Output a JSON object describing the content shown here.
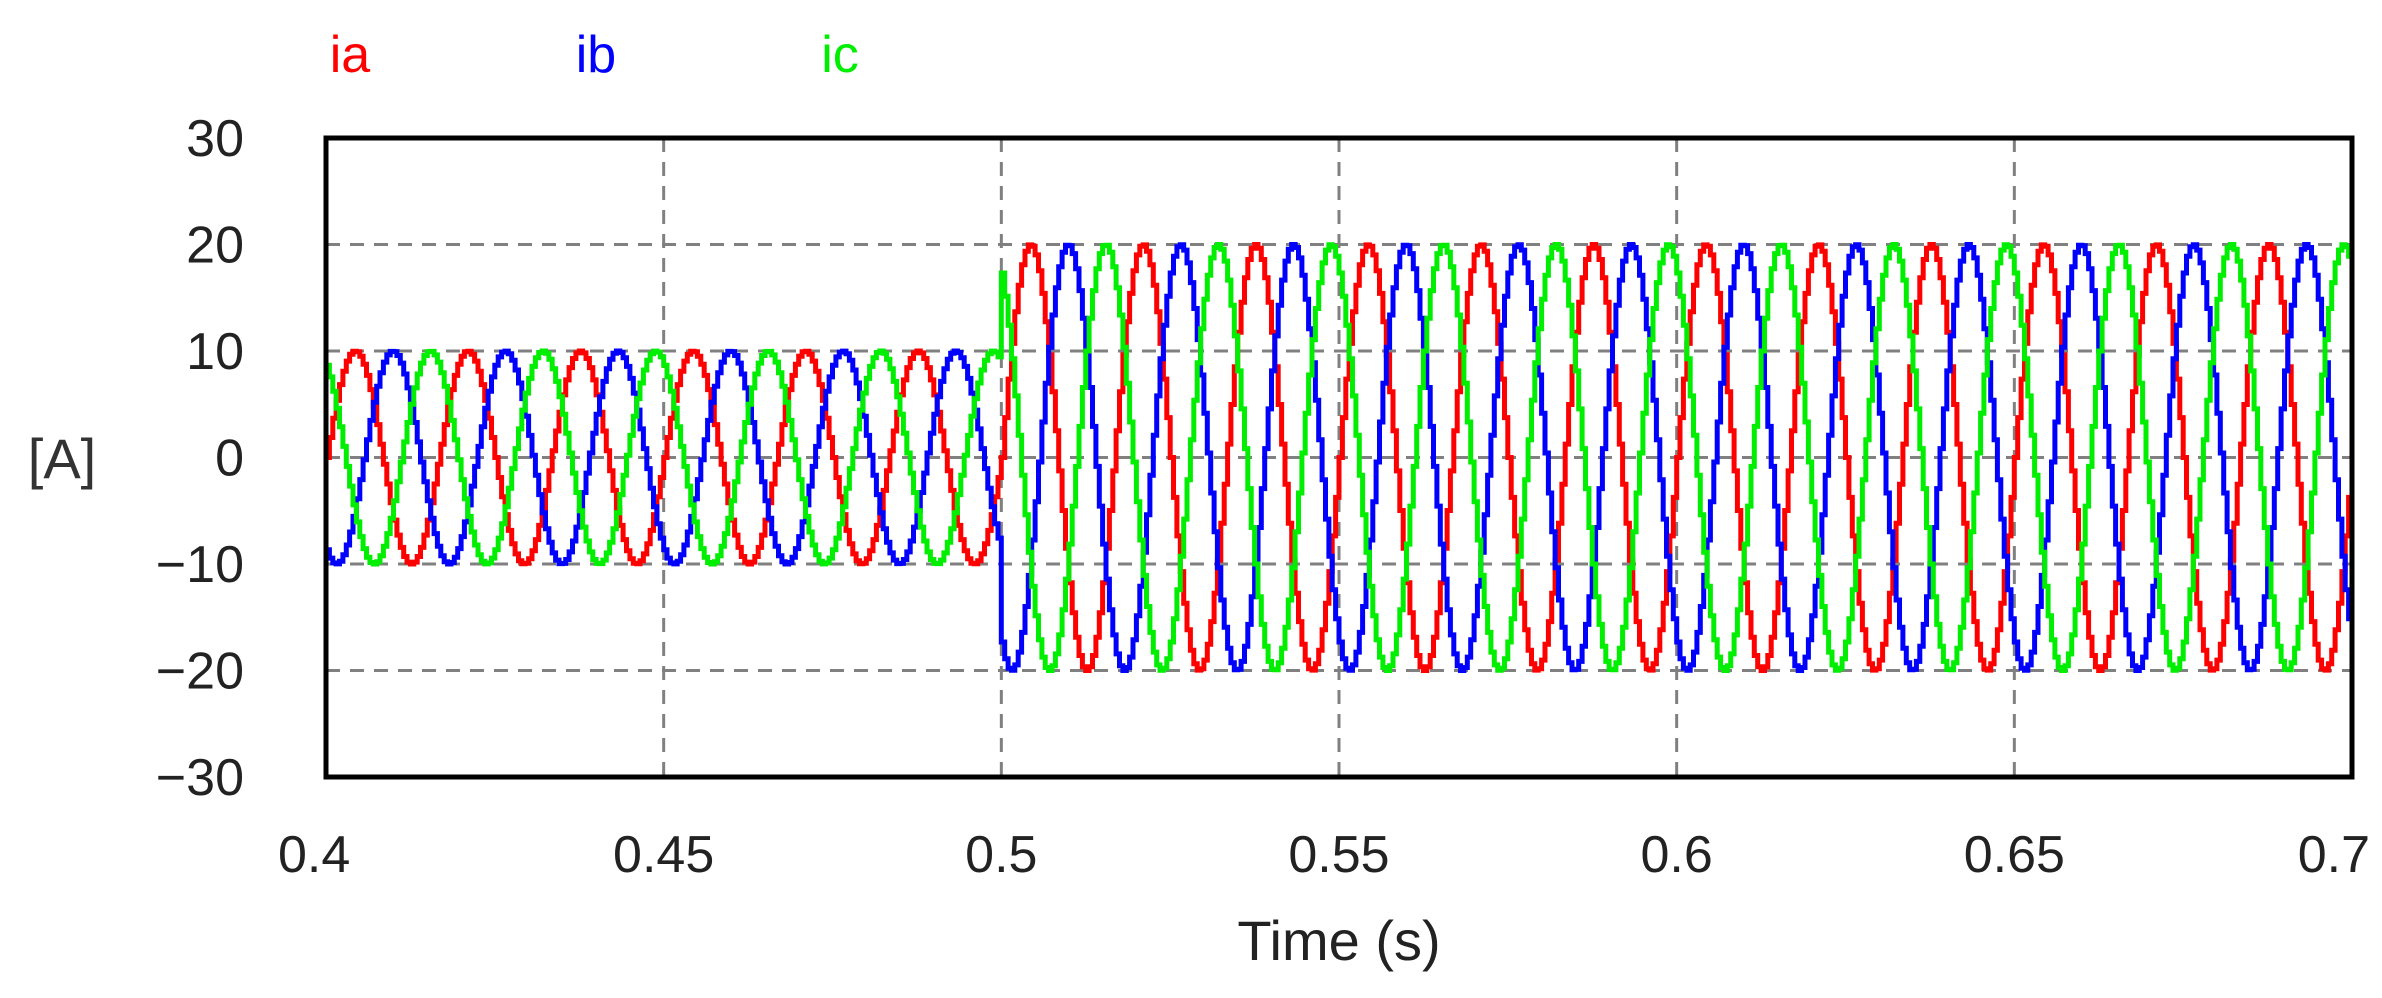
{
  "chart_data": {
    "type": "line",
    "xlabel": "Time (s)",
    "ylabel": "[A]",
    "xlim": [
      0.4,
      0.7
    ],
    "ylim": [
      -30,
      30
    ],
    "x_ticks": [
      "0.4",
      "0.45",
      "0.5",
      "0.55",
      "0.6",
      "0.65",
      "0.7"
    ],
    "x_tick_values": [
      0.4,
      0.45,
      0.5,
      0.55,
      0.6,
      0.65,
      0.7
    ],
    "y_ticks": [
      "30",
      "20",
      "10",
      "0",
      "−10",
      "−20",
      "−30"
    ],
    "y_tick_values": [
      30,
      20,
      10,
      0,
      -10,
      -20,
      -30
    ],
    "grid": true,
    "legend_position": "top-left",
    "frequency_hz": 60,
    "step_time": 0.5,
    "series": [
      {
        "name": "ia",
        "color": "#ff0000",
        "amplitude_before": 10,
        "amplitude_after": 20,
        "phase_deg": 0
      },
      {
        "name": "ib",
        "color": "#0000ff",
        "amplitude_before": 10,
        "amplitude_after": 20,
        "phase_deg": -120
      },
      {
        "name": "ic",
        "color": "#00ee00",
        "amplitude_before": 10,
        "amplitude_after": 20,
        "phase_deg": 120
      }
    ]
  }
}
